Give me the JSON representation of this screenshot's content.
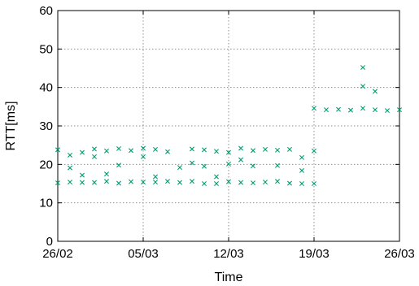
{
  "chart_data": {
    "type": "scatter",
    "title": "",
    "xlabel": "Time",
    "ylabel": "RTT[ms]",
    "x_ticks": [
      "26/02",
      "05/03",
      "12/03",
      "19/03",
      "26/03"
    ],
    "y_ticks": [
      "0",
      "10",
      "20",
      "30",
      "40",
      "50",
      "60"
    ],
    "xlim": [
      "2018-02-26",
      "2018-03-26"
    ],
    "ylim": [
      0,
      60
    ],
    "grid": true,
    "legend": "none",
    "marker": "x",
    "series": [
      {
        "color": "#009e73",
        "points": [
          [
            "2018-02-26",
            15.2
          ],
          [
            "2018-02-26",
            23.8
          ],
          [
            "2018-02-27",
            15.4
          ],
          [
            "2018-02-27",
            22.4
          ],
          [
            "2018-02-27",
            19.1
          ],
          [
            "2018-02-28",
            15.3
          ],
          [
            "2018-02-28",
            23.1
          ],
          [
            "2018-02-28",
            17.2
          ],
          [
            "2018-03-01",
            15.3
          ],
          [
            "2018-03-01",
            24.0
          ],
          [
            "2018-03-01",
            22.0
          ],
          [
            "2018-03-02",
            15.6
          ],
          [
            "2018-03-02",
            23.5
          ],
          [
            "2018-03-02",
            17.5
          ],
          [
            "2018-03-03",
            15.1
          ],
          [
            "2018-03-03",
            24.1
          ],
          [
            "2018-03-03",
            19.8
          ],
          [
            "2018-03-04",
            15.5
          ],
          [
            "2018-03-04",
            23.6
          ],
          [
            "2018-03-05",
            15.4
          ],
          [
            "2018-03-05",
            24.2
          ],
          [
            "2018-03-05",
            22.0
          ],
          [
            "2018-03-06",
            15.4
          ],
          [
            "2018-03-06",
            23.9
          ],
          [
            "2018-03-06",
            16.8
          ],
          [
            "2018-03-07",
            15.6
          ],
          [
            "2018-03-07",
            23.3
          ],
          [
            "2018-03-08",
            15.3
          ],
          [
            "2018-03-08",
            19.2
          ],
          [
            "2018-03-09",
            15.6
          ],
          [
            "2018-03-09",
            24.0
          ],
          [
            "2018-03-09",
            20.4
          ],
          [
            "2018-03-10",
            15.0
          ],
          [
            "2018-03-10",
            23.8
          ],
          [
            "2018-03-10",
            19.5
          ],
          [
            "2018-03-11",
            15.0
          ],
          [
            "2018-03-11",
            23.4
          ],
          [
            "2018-03-11",
            16.8
          ],
          [
            "2018-03-12",
            15.5
          ],
          [
            "2018-03-12",
            23.1
          ],
          [
            "2018-03-12",
            20.1
          ],
          [
            "2018-03-13",
            15.3
          ],
          [
            "2018-03-13",
            24.2
          ],
          [
            "2018-03-13",
            21.2
          ],
          [
            "2018-03-14",
            15.2
          ],
          [
            "2018-03-14",
            23.6
          ],
          [
            "2018-03-14",
            19.6
          ],
          [
            "2018-03-15",
            15.4
          ],
          [
            "2018-03-15",
            23.9
          ],
          [
            "2018-03-16",
            15.6
          ],
          [
            "2018-03-16",
            23.7
          ],
          [
            "2018-03-16",
            19.7
          ],
          [
            "2018-03-17",
            15.1
          ],
          [
            "2018-03-17",
            23.9
          ],
          [
            "2018-03-18",
            15.0
          ],
          [
            "2018-03-18",
            21.8
          ],
          [
            "2018-03-18",
            18.4
          ],
          [
            "2018-03-19",
            15.0
          ],
          [
            "2018-03-19",
            23.5
          ],
          [
            "2018-03-19",
            34.6
          ],
          [
            "2018-03-20",
            34.2
          ],
          [
            "2018-03-21",
            34.3
          ],
          [
            "2018-03-22",
            34.1
          ],
          [
            "2018-03-23",
            34.6
          ],
          [
            "2018-03-23",
            45.2
          ],
          [
            "2018-03-23",
            40.3
          ],
          [
            "2018-03-24",
            34.2
          ],
          [
            "2018-03-24",
            39.0
          ],
          [
            "2018-03-25",
            34.0
          ],
          [
            "2018-03-26",
            34.2
          ]
        ]
      }
    ]
  }
}
